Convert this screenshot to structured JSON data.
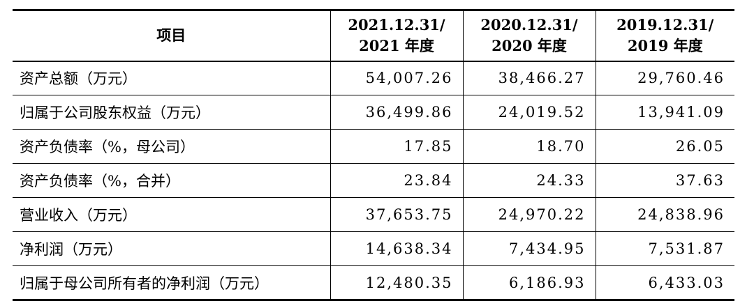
{
  "table": {
    "header": [
      [
        "项目"
      ],
      [
        "2021.12.31/",
        "2021 年度"
      ],
      [
        "2020.12.31/",
        "2020 年度"
      ],
      [
        "2019.12.31/",
        "2019 年度"
      ]
    ],
    "rows": [
      [
        "资产总额（万元）",
        "54,007.26",
        "38,466.27",
        "29,760.46"
      ],
      [
        "归属于公司股东权益（万元）",
        "36,499.86",
        "24,019.52",
        "13,941.09"
      ],
      [
        "资产负债率（%，母公司）",
        "17.85",
        "18.70",
        "26.05"
      ],
      [
        "资产负债率（%，合并）",
        "23.84",
        "24.33",
        "37.63"
      ],
      [
        "营业收入（万元）",
        "37,653.75",
        "24,970.22",
        "24,838.96"
      ],
      [
        "净利润（万元）",
        "14,638.34",
        "7,434.95",
        "7,531.87"
      ],
      [
        "归属于母公司所有者的净利润（万元）",
        "12,480.35",
        "6,186.93",
        "6,433.03"
      ]
    ]
  }
}
